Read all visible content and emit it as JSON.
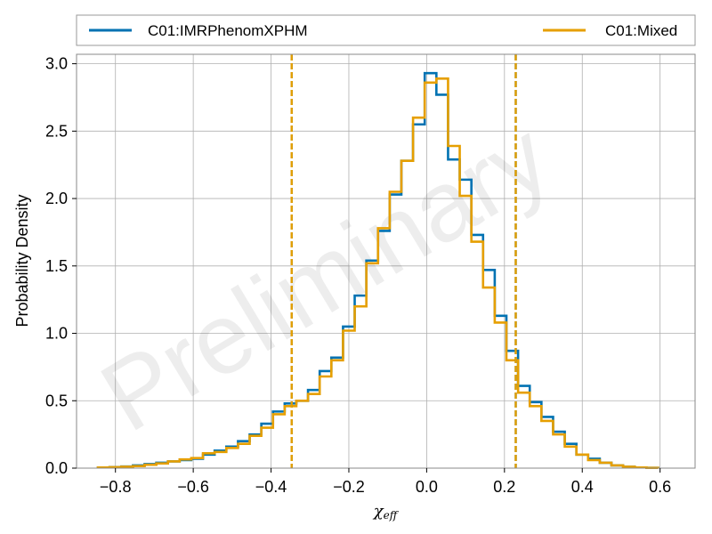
{
  "chart_data": {
    "type": "step-histogram",
    "xlabel": "χ_eff",
    "xlabel_main": "χ",
    "xlabel_sub": "eff",
    "ylabel": "Probability Density",
    "xlim": [
      -0.9,
      0.69
    ],
    "ylim": [
      0,
      3.07
    ],
    "xticks": [
      -0.8,
      -0.6,
      -0.4,
      -0.2,
      0.0,
      0.2,
      0.4,
      0.6
    ],
    "xtick_labels": [
      "−0.8",
      "−0.6",
      "−0.4",
      "−0.2",
      "0.0",
      "0.2",
      "0.4",
      "0.6"
    ],
    "yticks": [
      0.0,
      0.5,
      1.0,
      1.5,
      2.0,
      2.5,
      3.0
    ],
    "ytick_labels": [
      "0.0",
      "0.5",
      "1.0",
      "1.5",
      "2.0",
      "2.5",
      "3.0"
    ],
    "grid": true,
    "legend_position": "top",
    "watermark": "Preliminary",
    "series": [
      {
        "name": "C01:IMRPhenomXPHM",
        "color": "#0072b2",
        "bin_edges": [
          -0.845,
          -0.815,
          -0.785,
          -0.755,
          -0.725,
          -0.695,
          -0.665,
          -0.635,
          -0.605,
          -0.575,
          -0.545,
          -0.515,
          -0.485,
          -0.455,
          -0.425,
          -0.395,
          -0.365,
          -0.335,
          -0.305,
          -0.275,
          -0.245,
          -0.215,
          -0.185,
          -0.155,
          -0.125,
          -0.095,
          -0.065,
          -0.035,
          -0.005,
          0.025,
          0.055,
          0.085,
          0.115,
          0.145,
          0.175,
          0.205,
          0.235,
          0.265,
          0.295,
          0.325,
          0.355,
          0.385,
          0.415,
          0.445,
          0.475,
          0.505,
          0.535,
          0.565,
          0.595
        ],
        "densities": [
          0.005,
          0.008,
          0.012,
          0.02,
          0.03,
          0.04,
          0.05,
          0.06,
          0.07,
          0.1,
          0.13,
          0.16,
          0.2,
          0.25,
          0.33,
          0.42,
          0.48,
          0.5,
          0.58,
          0.72,
          0.82,
          1.05,
          1.28,
          1.54,
          1.76,
          2.03,
          2.28,
          2.55,
          2.93,
          2.77,
          2.29,
          2.14,
          1.73,
          1.47,
          1.13,
          0.87,
          0.61,
          0.49,
          0.38,
          0.27,
          0.18,
          0.1,
          0.07,
          0.04,
          0.02,
          0.01,
          0.005,
          0.002
        ]
      },
      {
        "name": "C01:Mixed",
        "color": "#e69f00",
        "bin_edges": [
          -0.845,
          -0.815,
          -0.785,
          -0.755,
          -0.725,
          -0.695,
          -0.665,
          -0.635,
          -0.605,
          -0.575,
          -0.545,
          -0.515,
          -0.485,
          -0.455,
          -0.425,
          -0.395,
          -0.365,
          -0.335,
          -0.305,
          -0.275,
          -0.245,
          -0.215,
          -0.185,
          -0.155,
          -0.125,
          -0.095,
          -0.065,
          -0.035,
          -0.005,
          0.025,
          0.055,
          0.085,
          0.115,
          0.145,
          0.175,
          0.205,
          0.235,
          0.265,
          0.295,
          0.325,
          0.355,
          0.385,
          0.415,
          0.445,
          0.475,
          0.505,
          0.535,
          0.565,
          0.595
        ],
        "densities": [
          0.005,
          0.007,
          0.01,
          0.015,
          0.025,
          0.035,
          0.05,
          0.065,
          0.075,
          0.11,
          0.12,
          0.15,
          0.18,
          0.24,
          0.3,
          0.4,
          0.46,
          0.5,
          0.55,
          0.68,
          0.8,
          1.02,
          1.2,
          1.52,
          1.78,
          2.05,
          2.28,
          2.6,
          2.86,
          2.89,
          2.39,
          2.02,
          1.68,
          1.34,
          1.08,
          0.8,
          0.56,
          0.46,
          0.35,
          0.25,
          0.16,
          0.1,
          0.06,
          0.04,
          0.02,
          0.01,
          0.005,
          0.002
        ]
      }
    ],
    "vlines": [
      {
        "series": "C01:IMRPhenomXPHM",
        "x": -0.347,
        "color": "#0072b2"
      },
      {
        "series": "C01:IMRPhenomXPHM",
        "x": 0.229,
        "color": "#0072b2"
      },
      {
        "series": "C01:Mixed",
        "x": -0.347,
        "color": "#e69f00"
      },
      {
        "series": "C01:Mixed",
        "x": 0.229,
        "color": "#e69f00"
      }
    ]
  }
}
